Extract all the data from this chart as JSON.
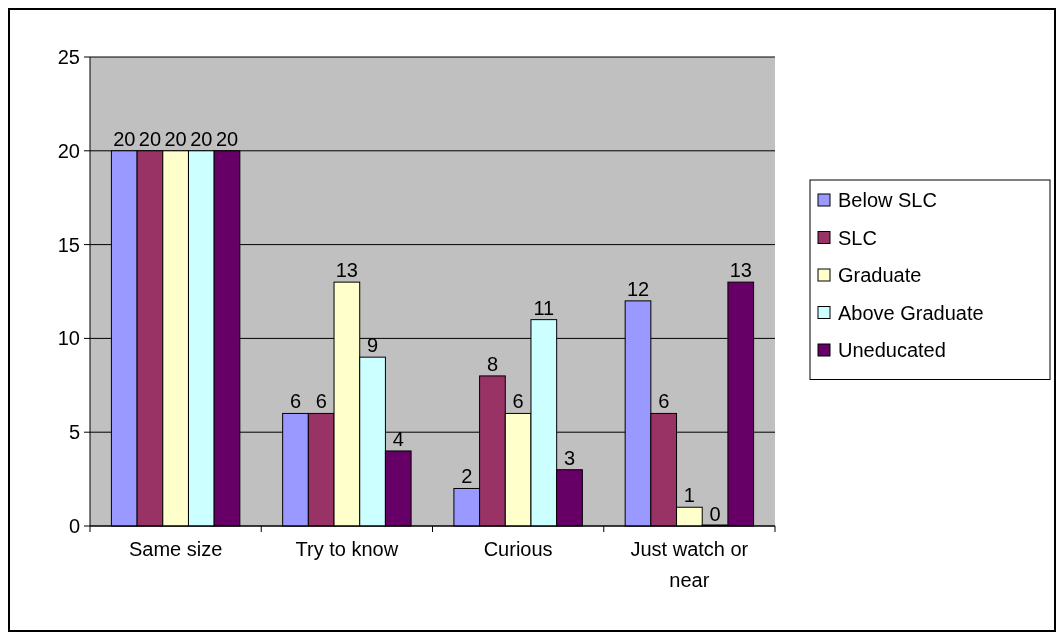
{
  "chart_data": {
    "type": "bar",
    "categories": [
      "Same size",
      "Try to know",
      "Curious",
      "Just watch or near"
    ],
    "series": [
      {
        "name": "Below SLC",
        "color": "#9999ff",
        "values": [
          20,
          6,
          2,
          12
        ]
      },
      {
        "name": "SLC",
        "color": "#993366",
        "values": [
          20,
          6,
          8,
          6
        ]
      },
      {
        "name": "Graduate",
        "color": "#ffffcc",
        "values": [
          20,
          13,
          6,
          1
        ]
      },
      {
        "name": "Above Graduate",
        "color": "#ccffff",
        "values": [
          20,
          9,
          11,
          0
        ]
      },
      {
        "name": "Uneducated",
        "color": "#660066",
        "values": [
          20,
          4,
          3,
          13
        ]
      }
    ],
    "ylim": [
      0,
      25
    ],
    "yticks": [
      0,
      5,
      10,
      15,
      20,
      25
    ],
    "grid": "y",
    "legend": "right",
    "data_labels": true
  }
}
